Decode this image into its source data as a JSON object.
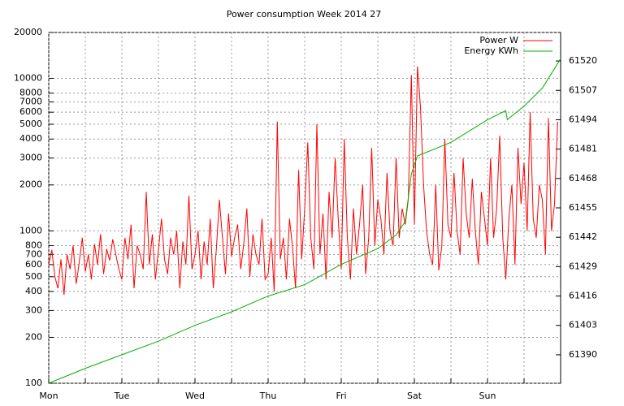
{
  "chart_data": {
    "type": "line",
    "title": "Power consumption Week 2014 27",
    "xlim": [
      0,
      168
    ],
    "xticks": [
      {
        "value": 0,
        "label": "Mon"
      },
      {
        "value": 24,
        "label": "Tue"
      },
      {
        "value": 48,
        "label": "Wed"
      },
      {
        "value": 72,
        "label": "Thu"
      },
      {
        "value": 96,
        "label": "Fri"
      },
      {
        "value": 120,
        "label": "Sat"
      },
      {
        "value": 144,
        "label": "Sun"
      }
    ],
    "xminorticks": [
      12,
      36,
      60,
      84,
      108,
      132,
      156
    ],
    "ylim": [
      100,
      20000
    ],
    "log_y": true,
    "yticks": [
      100,
      200,
      300,
      400,
      500,
      600,
      700,
      800,
      1000,
      2000,
      3000,
      4000,
      5000,
      6000,
      7000,
      8000,
      10000,
      20000
    ],
    "y2lim": [
      61377.4,
      61532.6
    ],
    "y2ticks": [
      61390,
      61403,
      61416,
      61429,
      61442,
      61455,
      61468,
      61481,
      61494,
      61507,
      61520
    ],
    "grid": true,
    "legend": "top-right",
    "series": [
      {
        "name": "Power W",
        "color": "#ff0000",
        "x": [
          0,
          1,
          2,
          3,
          4,
          5,
          6,
          7,
          8,
          9,
          10,
          11,
          12,
          13,
          14,
          15,
          16,
          17,
          18,
          19,
          20,
          21,
          22,
          23,
          24,
          25,
          26,
          27,
          28,
          29,
          30,
          31,
          32,
          33,
          34,
          35,
          36,
          37,
          38,
          39,
          40,
          41,
          42,
          43,
          44,
          45,
          46,
          47,
          48,
          49,
          50,
          51,
          52,
          53,
          54,
          55,
          56,
          57,
          58,
          59,
          60,
          61,
          62,
          63,
          64,
          65,
          66,
          67,
          68,
          69,
          70,
          71,
          72,
          73,
          74,
          75,
          76,
          77,
          78,
          79,
          80,
          81,
          82,
          83,
          84,
          85,
          86,
          87,
          88,
          89,
          90,
          91,
          92,
          93,
          94,
          95,
          96,
          97,
          98,
          99,
          100,
          101,
          102,
          103,
          104,
          105,
          106,
          107,
          108,
          109,
          110,
          111,
          112,
          113,
          114,
          115,
          116,
          117,
          118,
          119,
          120,
          121,
          122,
          123,
          124,
          125,
          126,
          127,
          128,
          129,
          130,
          131,
          132,
          133,
          134,
          135,
          136,
          137,
          138,
          139,
          140,
          141,
          142,
          143,
          144,
          145,
          146,
          147,
          148,
          149,
          150,
          151,
          152,
          153,
          154,
          155,
          156,
          157,
          158,
          159,
          160,
          161,
          162,
          163,
          164,
          165,
          166,
          167
        ],
        "values": [
          600,
          750,
          500,
          420,
          650,
          380,
          700,
          560,
          800,
          450,
          620,
          900,
          540,
          700,
          480,
          820,
          600,
          950,
          520,
          760,
          640,
          880,
          700,
          560,
          480,
          900,
          650,
          1100,
          420,
          800,
          700,
          560,
          1800,
          600,
          950,
          480,
          750,
          1200,
          650,
          520,
          900,
          700,
          1000,
          420,
          850,
          600,
          1700,
          560,
          700,
          1000,
          480,
          850,
          600,
          1200,
          420,
          760,
          1600,
          900,
          520,
          1300,
          680,
          900,
          1100,
          560,
          820,
          1400,
          500,
          950,
          700,
          600,
          1200,
          480,
          520,
          900,
          400,
          5200,
          650,
          900,
          480,
          1200,
          780,
          420,
          2500,
          650,
          1400,
          3800,
          900,
          560,
          5000,
          700,
          1300,
          480,
          1800,
          900,
          3000,
          1200,
          560,
          4000,
          900,
          480,
          1400,
          700,
          1100,
          2000,
          520,
          900,
          3500,
          800,
          1600,
          1200,
          700,
          2400,
          1000,
          800,
          3000,
          900,
          1400,
          1100,
          1600,
          10500,
          1100,
          12000,
          6500,
          2000,
          1000,
          700,
          600,
          2000,
          550,
          800,
          4000,
          1100,
          900,
          2400,
          1000,
          700,
          3000,
          1300,
          900,
          2200,
          1000,
          600,
          1800,
          1200,
          800,
          3000,
          900,
          1400,
          4200,
          900,
          480,
          1200,
          2000,
          600,
          3500,
          1500,
          2800,
          1000,
          6000,
          1200,
          900,
          2000,
          1600,
          700,
          5500,
          1000,
          1500,
          5200
        ]
      },
      {
        "name": "Energy KWh",
        "color": "#00b000",
        "axis": "y2",
        "x": [
          0,
          12,
          24,
          36,
          48,
          60,
          72,
          84,
          96,
          108,
          114,
          117,
          119,
          121,
          132,
          144,
          150,
          150.5,
          156,
          162,
          168
        ],
        "values": [
          61377.4,
          61384,
          61390,
          61396,
          61403,
          61409,
          61416,
          61421,
          61430,
          61437,
          61443,
          61449,
          61470,
          61478,
          61484,
          61494,
          61498,
          61494,
          61500,
          61508,
          61521
        ]
      }
    ]
  }
}
